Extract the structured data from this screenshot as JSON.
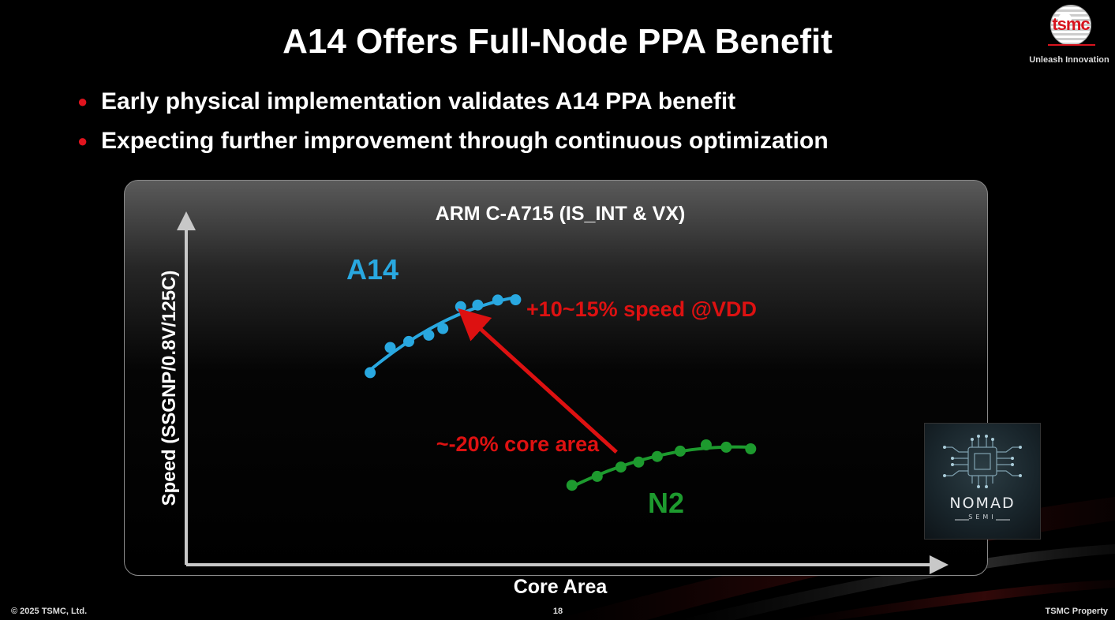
{
  "slide": {
    "title": "A14 Offers Full-Node PPA Benefit",
    "bullets": [
      "Early physical implementation validates A14 PPA benefit",
      "Expecting further improvement through continuous optimization"
    ],
    "footer_left": "© 2025 TSMC, Ltd.",
    "page_number": "18",
    "footer_right": "TSMC Property"
  },
  "logo": {
    "text": "tsmc",
    "tagline": "Unleash Innovation"
  },
  "watermark": {
    "name": "NOMAD",
    "sub": "SEMI",
    "icon": "chip-circuit-icon"
  },
  "colors": {
    "background": "#000000",
    "bullet": "#e0141e",
    "a14": "#29a8e0",
    "n2": "#1d9a2e",
    "annotation": "#dd1111"
  },
  "chart_data": {
    "type": "scatter",
    "title": "ARM C-A715 (IS_INT & VX)",
    "xlabel": "Core Area",
    "ylabel": "Speed (SSGNP/0.8V/125C)",
    "ticks_shown": false,
    "grid": false,
    "xlim": [
      0,
      100
    ],
    "ylim": [
      0,
      100
    ],
    "series": [
      {
        "name": "A14",
        "color": "#29a8e0",
        "x": [
          24.8,
          27.5,
          30.0,
          32.7,
          34.6,
          37.0,
          39.3,
          42.0,
          44.4
        ],
        "y": [
          58.0,
          65.6,
          67.4,
          69.3,
          71.3,
          77.9,
          78.4,
          79.9,
          80.0
        ]
      },
      {
        "name": "N2",
        "color": "#1d9a2e",
        "x": [
          52.0,
          55.4,
          58.6,
          61.0,
          63.5,
          66.6,
          70.1,
          72.8,
          76.1
        ],
        "y": [
          24.0,
          26.7,
          29.5,
          31.0,
          32.7,
          34.3,
          36.2,
          35.5,
          35.0
        ]
      }
    ],
    "annotations": [
      {
        "text": "+10~15% speed @VDD",
        "color": "#dd1111"
      },
      {
        "text": "~-20% core area",
        "color": "#dd1111"
      }
    ],
    "arrow": {
      "from": [
        58.0,
        34.0
      ],
      "to": [
        37.8,
        75.0
      ],
      "color": "#dd1111"
    }
  }
}
